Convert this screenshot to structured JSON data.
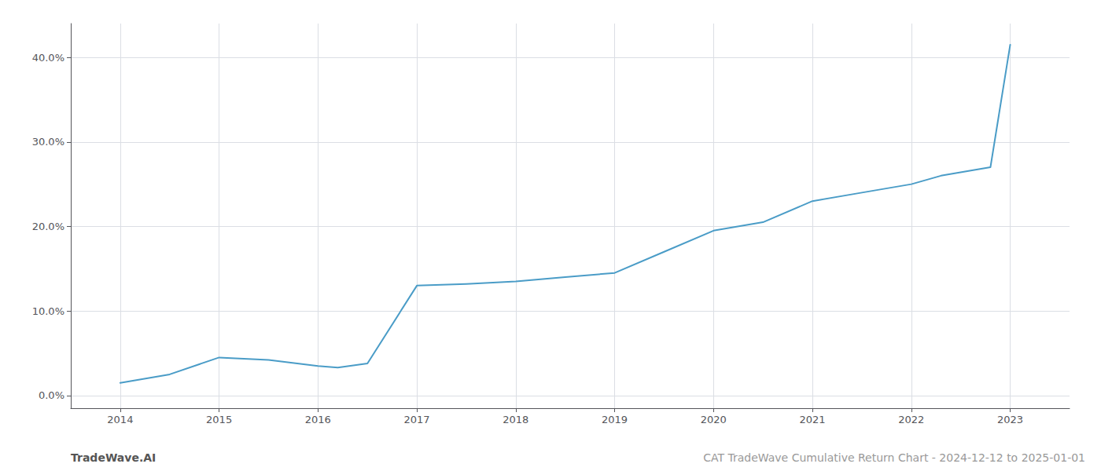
{
  "chart_data": {
    "type": "line",
    "x": [
      2014,
      2014.5,
      2015,
      2015.5,
      2016,
      2016.2,
      2016.5,
      2017,
      2017.5,
      2018,
      2018.5,
      2019,
      2019.5,
      2020,
      2020.5,
      2021,
      2021.5,
      2022,
      2022.3,
      2022.8,
      2023
    ],
    "values": [
      1.5,
      2.5,
      4.5,
      4.2,
      3.5,
      3.3,
      3.8,
      13.0,
      13.2,
      13.5,
      14.0,
      14.5,
      17.0,
      19.5,
      20.5,
      23.0,
      24.0,
      25.0,
      26.0,
      27.0,
      41.5
    ],
    "color": "#4a9cc7",
    "xlim": [
      2013.5,
      2023.6
    ],
    "xticks": [
      2014,
      2015,
      2016,
      2017,
      2018,
      2019,
      2020,
      2021,
      2022,
      2023
    ],
    "ylim": [
      -1.5,
      44.0
    ],
    "yticks": [
      {
        "value": 0.0,
        "label": "0.0%"
      },
      {
        "value": 10.0,
        "label": "10.0%"
      },
      {
        "value": 20.0,
        "label": "20.0%"
      },
      {
        "value": 30.0,
        "label": "30.0%"
      },
      {
        "value": 40.0,
        "label": "40.0%"
      }
    ],
    "grid": true,
    "annotations": [
      "TradeWave.AI",
      "CAT TradeWave Cumulative Return Chart - 2024-12-12 to 2025-01-01"
    ]
  }
}
